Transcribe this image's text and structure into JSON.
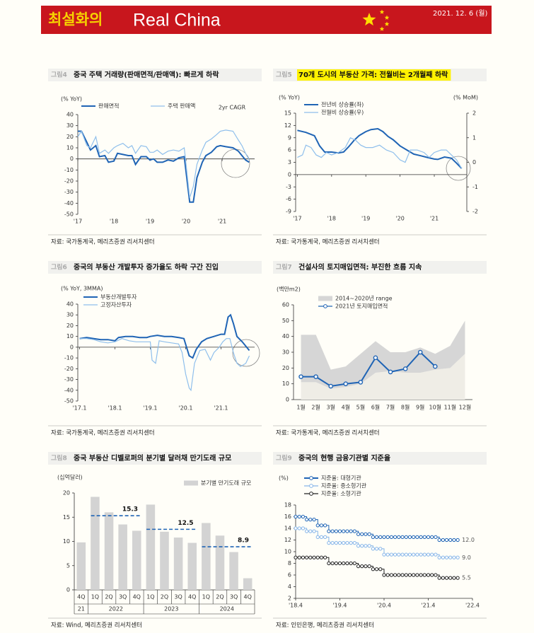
{
  "header": {
    "brand": "최설화의",
    "title": "Real China",
    "date": "2021. 12. 6 (월)"
  },
  "chart_data": [
    {
      "type": "line",
      "figure": "그림4",
      "title": "중국 주택 거래량(판매면적/판매액): 빠르게 하락",
      "ylabel": "(% YoY)",
      "annotation": "2yr CAGR",
      "source": "자료: 국가통계국, 메리츠증권 리서치센터",
      "legend": "top-left",
      "xlim": [
        2017,
        2021.9
      ],
      "xticks": [
        {
          "value": 2017,
          "label": "'17"
        },
        {
          "value": 2018,
          "label": "'18"
        },
        {
          "value": 2019,
          "label": "'19"
        },
        {
          "value": 2020,
          "label": "'20"
        },
        {
          "value": 2021,
          "label": "'21"
        }
      ],
      "ylim": [
        -50,
        40
      ],
      "yticks": [
        -50,
        -40,
        -30,
        -20,
        -10,
        0,
        10,
        20,
        30,
        40
      ],
      "x": [
        2017.0,
        2017.1,
        2017.25,
        2017.35,
        2017.5,
        2017.6,
        2017.75,
        2017.85,
        2018.0,
        2018.1,
        2018.25,
        2018.4,
        2018.5,
        2018.6,
        2018.75,
        2018.9,
        2019.0,
        2019.1,
        2019.2,
        2019.35,
        2019.5,
        2019.65,
        2019.8,
        2019.95,
        2020.1,
        2020.2,
        2020.3,
        2020.45,
        2020.55,
        2020.7,
        2020.85,
        2020.95,
        2021.1,
        2021.3,
        2021.45,
        2021.55,
        2021.65,
        2021.75
      ],
      "series": [
        {
          "name": "판매면적",
          "color": "#1f64b5",
          "values": [
            25,
            25,
            15,
            8,
            12,
            2,
            3,
            -3,
            -2,
            5,
            4,
            3,
            3,
            -5,
            2,
            2,
            -1,
            0,
            -3,
            -3,
            -1,
            -2,
            1,
            2,
            -39,
            -39,
            -17,
            -3,
            3,
            6,
            11,
            12,
            11,
            10,
            7,
            3,
            -1,
            -3
          ]
        },
        {
          "name": "주택 판매액",
          "color": "#8fbfec",
          "values": [
            20,
            25,
            12,
            10,
            20,
            5,
            8,
            5,
            10,
            12,
            14,
            10,
            12,
            5,
            12,
            11,
            6,
            6,
            8,
            4,
            7,
            8,
            7,
            10,
            -35,
            -25,
            -5,
            8,
            15,
            18,
            22,
            25,
            26,
            25,
            17,
            12,
            5,
            -1
          ]
        }
      ]
    },
    {
      "type": "line",
      "figure": "그림5",
      "title": "70개 도시의 부동산 가격: 전월비는 2개월째 하락",
      "highlight": "#fff200",
      "ylabel": "(% YoY)",
      "y2label": "(% MoM)",
      "source": "자료: 국가통계국, 메리츠증권 리서치센터",
      "legend": "top-left",
      "xlim": [
        2016.95,
        2021.95
      ],
      "xticks": [
        {
          "value": 2017,
          "label": "'17"
        },
        {
          "value": 2018,
          "label": "'18"
        },
        {
          "value": 2019,
          "label": "'19"
        },
        {
          "value": 2020,
          "label": "'20"
        },
        {
          "value": 2021,
          "label": "'21"
        }
      ],
      "ylim": [
        -9,
        15
      ],
      "yticks": [
        -9,
        -6,
        -3,
        0,
        3,
        6,
        9,
        12,
        15
      ],
      "y2lim": [
        -2,
        2
      ],
      "y2ticks": [
        -2,
        -1,
        0,
        1,
        2
      ],
      "series": [
        {
          "name": "전년비 상승률(좌)",
          "color": "#1f64b5",
          "x": [
            2017.0,
            2017.25,
            2017.5,
            2017.65,
            2017.8,
            2018.0,
            2018.2,
            2018.35,
            2018.5,
            2018.65,
            2018.8,
            2019.0,
            2019.15,
            2019.35,
            2019.5,
            2019.65,
            2019.8,
            2020.0,
            2020.2,
            2020.4,
            2020.6,
            2020.8,
            2021.0,
            2021.1,
            2021.3,
            2021.5,
            2021.65,
            2021.8
          ],
          "values": [
            10.8,
            10.3,
            9.5,
            7,
            5.5,
            5.5,
            5.3,
            5.5,
            6.8,
            8.3,
            9.5,
            10.5,
            11,
            11.2,
            10.5,
            9.3,
            8.5,
            7,
            6,
            5,
            4.6,
            4.2,
            3.8,
            3.7,
            4.3,
            4,
            2.8,
            1.5
          ]
        },
        {
          "name": "전월비 상승률(우)",
          "color": "#8fbfec",
          "axis": "y2",
          "x": [
            2017.0,
            2017.15,
            2017.25,
            2017.4,
            2017.55,
            2017.7,
            2017.85,
            2018.0,
            2018.2,
            2018.4,
            2018.55,
            2018.7,
            2018.85,
            2019.0,
            2019.2,
            2019.4,
            2019.6,
            2019.8,
            2020.0,
            2020.15,
            2020.3,
            2020.5,
            2020.7,
            2020.85,
            2021.0,
            2021.2,
            2021.35,
            2021.5,
            2021.65,
            2021.8
          ],
          "values": [
            0.2,
            0.3,
            0.7,
            0.6,
            0.3,
            0.2,
            0.4,
            0.3,
            0.4,
            0.6,
            1,
            0.9,
            0.7,
            0.6,
            0.6,
            0.7,
            0.5,
            0.4,
            0.1,
            0,
            0.5,
            0.5,
            0.4,
            0.2,
            0.4,
            0.5,
            0.5,
            0.3,
            0.1,
            -0.25
          ]
        }
      ]
    },
    {
      "type": "line",
      "figure": "그림6",
      "title": "중국의 부동산 개발투자 증가율도 하락 구간 진입",
      "ylabel": "(% YoY, 3MMA)",
      "source": "자료: 국가통계국, 메리츠증권 리서치센터",
      "legend": "top-left",
      "xlim": [
        2016.95,
        2021.95
      ],
      "xticks": [
        {
          "value": 2017,
          "label": "'17.1"
        },
        {
          "value": 2018,
          "label": "'18.1"
        },
        {
          "value": 2019,
          "label": "'19.1"
        },
        {
          "value": 2020,
          "label": "'20.1"
        },
        {
          "value": 2021,
          "label": "'21.1"
        }
      ],
      "ylim": [
        -50,
        40
      ],
      "yticks": [
        -50,
        -40,
        -30,
        -20,
        -10,
        0,
        10,
        20,
        30,
        40
      ],
      "series": [
        {
          "name": "부동산개발투자",
          "color": "#1f64b5",
          "x": [
            2017.0,
            2017.2,
            2017.4,
            2017.6,
            2017.8,
            2018.0,
            2018.1,
            2018.3,
            2018.5,
            2018.7,
            2018.9,
            2019.0,
            2019.2,
            2019.4,
            2019.6,
            2019.8,
            2019.95,
            2020.1,
            2020.2,
            2020.3,
            2020.45,
            2020.6,
            2020.8,
            2021.0,
            2021.1,
            2021.2,
            2021.27,
            2021.35,
            2021.45,
            2021.6,
            2021.7,
            2021.8
          ],
          "values": [
            8,
            9,
            8,
            7,
            7,
            6,
            9,
            10,
            10,
            9,
            9,
            10,
            11,
            10,
            10,
            9,
            8,
            -8,
            -10,
            -2,
            5,
            8,
            10,
            12,
            12,
            28,
            30,
            22,
            10,
            5,
            1,
            -3
          ]
        },
        {
          "name": "고정자산투자",
          "color": "#8fbfec",
          "x": [
            2017.0,
            2017.2,
            2017.4,
            2017.6,
            2017.8,
            2018.0,
            2018.2,
            2018.4,
            2018.6,
            2018.8,
            2019.0,
            2019.05,
            2019.15,
            2019.25,
            2019.4,
            2019.6,
            2019.8,
            2019.9,
            2020.0,
            2020.1,
            2020.15,
            2020.25,
            2020.4,
            2020.55,
            2020.7,
            2020.8,
            2020.95,
            2021.05,
            2021.15,
            2021.25,
            2021.35,
            2021.45,
            2021.55,
            2021.7,
            2021.8
          ],
          "values": [
            8,
            8,
            7,
            5,
            4,
            5,
            8,
            6,
            5,
            5,
            5,
            -12,
            -15,
            6,
            5,
            4,
            3,
            -5,
            -25,
            -38,
            -40,
            -15,
            -3,
            -2,
            -12,
            -5,
            0,
            5,
            8,
            8,
            -5,
            -15,
            -18,
            -15,
            -8
          ]
        }
      ]
    },
    {
      "type": "line",
      "figure": "그림7",
      "title": "건설사의 토지매입면적: 부진한 흐름 지속",
      "ylabel": "(백만m2)",
      "source": "자료: 국가통계국, 메리츠증권 리서치센터",
      "legend": "top-left",
      "categories": [
        "1월",
        "2월",
        "3월",
        "4월",
        "5월",
        "6월",
        "7월",
        "8월",
        "9월",
        "10월",
        "11월",
        "12월"
      ],
      "ylim": [
        0,
        60
      ],
      "yticks": [
        0,
        10,
        20,
        30,
        40,
        50,
        60
      ],
      "series": [
        {
          "name": "2014~2020년 range",
          "color": "#d6d6d6",
          "low": [
            11,
            11,
            7,
            8,
            10,
            17,
            18,
            17,
            17,
            19,
            20,
            29
          ],
          "high": [
            41,
            41,
            19,
            21,
            29,
            37,
            30,
            30,
            33,
            29,
            34,
            50
          ]
        },
        {
          "name": "2021년 토지매입면적",
          "color": "#1f64b5",
          "values": [
            14.5,
            14.5,
            8.5,
            10,
            11,
            26.5,
            17.5,
            19.5,
            30,
            21,
            null,
            null
          ]
        }
      ]
    },
    {
      "type": "bar",
      "figure": "그림8",
      "title": "중국 부동산 디벨로퍼의 분기별 달러채 만기도래 규모",
      "ylabel": "(십억달러)",
      "source": "자료: Wind, 메리츠증권 리서치센터",
      "legend": "top-right",
      "ylim": [
        0,
        20
      ],
      "yticks": [
        0,
        5,
        10,
        15,
        20
      ],
      "series_name": "분기별 만기도래 규모",
      "color": "#d3d3d3",
      "average_color": "#1f64b5",
      "groups": [
        {
          "label": "21",
          "quarters": [
            "4Q"
          ],
          "values": [
            9.8
          ]
        },
        {
          "label": "2022",
          "quarters": [
            "1Q",
            "2Q",
            "3Q",
            "4Q"
          ],
          "values": [
            19.2,
            16,
            13.5,
            12.2
          ],
          "average": 15.3
        },
        {
          "label": "2023",
          "quarters": [
            "1Q",
            "2Q",
            "3Q",
            "4Q"
          ],
          "values": [
            17.6,
            12,
            10.8,
            9.7
          ],
          "average": 12.5
        },
        {
          "label": "2024",
          "quarters": [
            "1Q",
            "2Q",
            "3Q",
            "4Q"
          ],
          "values": [
            13.8,
            11.2,
            7.8,
            2.4
          ],
          "average": 8.9
        }
      ]
    },
    {
      "type": "step",
      "figure": "그림9",
      "title": "중국의 현행 금융기관별 지준율",
      "ylabel": "(%)",
      "source": "자료: 인민은행, 메리츠증권 리서치센터",
      "legend": "top-left",
      "xlim": [
        "2018-04",
        "2022-04"
      ],
      "xticks": [
        {
          "value": "2018-04",
          "label": "'18.4"
        },
        {
          "value": "2019-04",
          "label": "'19.4"
        },
        {
          "value": "2020-04",
          "label": "'20.4"
        },
        {
          "value": "2021-04",
          "label": "'21.4"
        },
        {
          "value": "2022-04",
          "label": "'22.4"
        }
      ],
      "ylim": [
        2,
        18
      ],
      "yticks": [
        2,
        4,
        6,
        8,
        10,
        12,
        14,
        16,
        18
      ],
      "x": [
        "2018-04",
        "2018-05",
        "2018-06",
        "2018-07",
        "2018-08",
        "2018-09",
        "2018-10",
        "2018-11",
        "2018-12",
        "2019-01",
        "2019-02",
        "2019-03",
        "2019-04",
        "2019-05",
        "2019-06",
        "2019-07",
        "2019-08",
        "2019-09",
        "2019-10",
        "2019-11",
        "2019-12",
        "2020-01",
        "2020-02",
        "2020-03",
        "2020-04",
        "2020-05",
        "2020-06",
        "2020-07",
        "2020-08",
        "2020-09",
        "2020-10",
        "2020-11",
        "2020-12",
        "2021-01",
        "2021-02",
        "2021-03",
        "2021-04",
        "2021-05",
        "2021-06",
        "2021-07",
        "2021-08",
        "2021-09",
        "2021-10",
        "2021-11",
        "2021-12"
      ],
      "series": [
        {
          "name": "지준율: 대형기관",
          "color": "#1f64b5",
          "values": [
            16,
            16,
            16,
            15.5,
            15.5,
            15.5,
            14.5,
            14.5,
            14.5,
            13.5,
            13.5,
            13.5,
            13.5,
            13.5,
            13.5,
            13.5,
            13.5,
            13,
            13,
            13,
            13,
            12.5,
            12.5,
            12.5,
            12.5,
            12.5,
            12.5,
            12.5,
            12.5,
            12.5,
            12.5,
            12.5,
            12.5,
            12.5,
            12.5,
            12.5,
            12.5,
            12.5,
            12.5,
            12,
            12,
            12,
            12,
            12,
            12
          ],
          "value_labels": [
            null,
            null,
            null,
            null,
            null,
            null,
            null,
            null,
            null,
            null,
            null,
            null,
            null,
            null,
            null,
            null,
            null,
            null,
            null,
            null,
            null,
            null,
            null,
            null,
            null,
            null,
            null,
            null,
            null,
            null,
            null,
            null,
            null,
            null,
            null,
            null,
            null,
            null,
            null,
            null,
            null,
            null,
            null,
            null,
            "12.0"
          ]
        },
        {
          "name": "지준율: 중소형기관",
          "color": "#86b5e8",
          "values": [
            14,
            14,
            14,
            13.5,
            13.5,
            13.5,
            12.5,
            12.5,
            12.5,
            11.5,
            11.5,
            11.5,
            11.5,
            11.5,
            11.5,
            11.5,
            11.5,
            11,
            11,
            11,
            11,
            10.5,
            10.5,
            10.5,
            9.5,
            9.5,
            9.5,
            9.5,
            9.5,
            9.5,
            9.5,
            9.5,
            9.5,
            9.5,
            9.5,
            9.5,
            9.5,
            9.5,
            9.5,
            9,
            9,
            9,
            9,
            9,
            9
          ],
          "value_labels": [
            null,
            null,
            null,
            null,
            null,
            null,
            null,
            null,
            null,
            null,
            null,
            null,
            null,
            null,
            null,
            null,
            null,
            null,
            null,
            null,
            null,
            null,
            null,
            null,
            null,
            null,
            null,
            null,
            null,
            null,
            null,
            null,
            null,
            null,
            null,
            null,
            null,
            null,
            null,
            null,
            null,
            null,
            null,
            null,
            "9.0"
          ]
        },
        {
          "name": "지준율: 소형기관",
          "color": "#222222",
          "values": [
            9,
            9,
            9,
            9,
            9,
            9,
            9,
            9,
            9,
            8,
            8,
            8,
            8,
            8,
            8,
            8,
            8,
            7.5,
            7.5,
            7.5,
            7.5,
            7,
            7,
            7,
            6,
            6,
            6,
            6,
            6,
            6,
            6,
            6,
            6,
            6,
            6,
            6,
            6,
            6,
            6,
            5.5,
            5.5,
            5.5,
            5.5,
            5.5,
            5.5
          ],
          "value_labels": [
            null,
            null,
            null,
            null,
            null,
            null,
            null,
            null,
            null,
            null,
            null,
            null,
            null,
            null,
            null,
            null,
            null,
            null,
            null,
            null,
            null,
            null,
            null,
            null,
            null,
            null,
            null,
            null,
            null,
            null,
            null,
            null,
            null,
            null,
            null,
            null,
            null,
            null,
            null,
            null,
            null,
            null,
            null,
            null,
            "5.5"
          ]
        }
      ]
    }
  ]
}
